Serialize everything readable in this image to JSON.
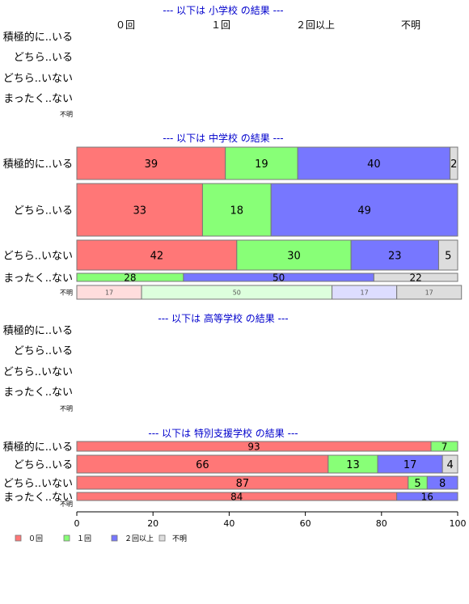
{
  "colors": {
    "zero": "#ff7777",
    "once": "#88ff77",
    "twice_plus": "#7777ff",
    "unknown": "#dddddd",
    "zero_light": "#ffdddd",
    "once_light": "#ddffdd",
    "twice_plus_light": "#ddddff",
    "section_title": "#0000cc",
    "bar_border": "#777777"
  },
  "chart_data": {
    "type": "bar",
    "orientation": "horizontal",
    "stacked": true,
    "x_range": [
      0,
      100
    ],
    "x_ticks": [
      "0",
      "20",
      "40",
      "60",
      "80",
      "100"
    ],
    "header_labels": [
      "０回",
      "１回",
      "２回以上",
      "不明"
    ],
    "legend": {
      "placement": "bottom-left",
      "items": [
        {
          "key": "zero",
          "label": "０回"
        },
        {
          "key": "once",
          "label": "１回"
        },
        {
          "key": "twice_plus",
          "label": "２回以上"
        },
        {
          "key": "unknown",
          "label": "不明"
        }
      ]
    },
    "sections": [
      {
        "title": "--- 以下は 小学校 の結果 ---",
        "rows": [
          {
            "label": "積極的に..いる",
            "values": []
          },
          {
            "label": "どちら..いる",
            "values": []
          },
          {
            "label": "どちら..いない",
            "values": []
          },
          {
            "label": "まったく..ない",
            "values": []
          },
          {
            "label": "不明",
            "small": true,
            "values": []
          }
        ]
      },
      {
        "title": "--- 以下は 中学校 の結果 ---",
        "rows": [
          {
            "label": "積極的に..いる",
            "values": [
              39,
              19,
              40,
              2
            ]
          },
          {
            "label": "どちら..いる",
            "values": [
              33,
              18,
              49,
              0
            ]
          },
          {
            "label": "どちら..いない",
            "values": [
              42,
              30,
              23,
              5
            ]
          },
          {
            "label": "まったく..ない",
            "values": [
              0,
              28,
              50,
              22
            ]
          },
          {
            "label": "不明",
            "small": true,
            "light": true,
            "values": [
              17,
              50,
              17,
              17
            ]
          }
        ]
      },
      {
        "title": "--- 以下は 高等学校 の結果 ---",
        "rows": [
          {
            "label": "積極的に..いる",
            "values": []
          },
          {
            "label": "どちら..いる",
            "values": []
          },
          {
            "label": "どちら..いない",
            "values": []
          },
          {
            "label": "まったく..ない",
            "values": []
          },
          {
            "label": "不明",
            "small": true,
            "values": []
          }
        ]
      },
      {
        "title": "--- 以下は 特別支援学校 の結果 ---",
        "rows": [
          {
            "label": "積極的に..いる",
            "values": [
              93,
              7,
              0,
              0
            ]
          },
          {
            "label": "どちら..いる",
            "values": [
              66,
              13,
              17,
              4
            ]
          },
          {
            "label": "どちら..いない",
            "values": [
              87,
              5,
              8,
              0
            ]
          },
          {
            "label": "まったく..ない",
            "values": [
              84,
              0,
              16,
              0
            ]
          },
          {
            "label": "不明",
            "small": true,
            "values": []
          }
        ]
      }
    ]
  }
}
